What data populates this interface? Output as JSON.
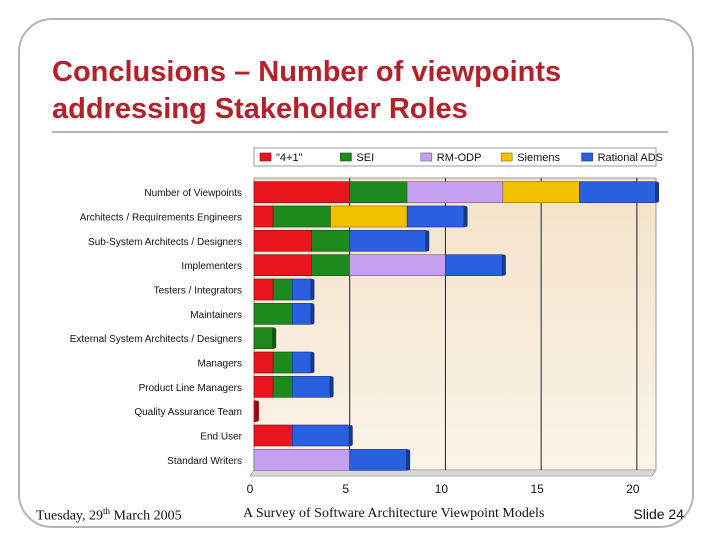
{
  "slide": {
    "title": "Conclusions – Number of viewpoints addressing Stakeholder Roles",
    "footer_date_prefix": "Tuesday, 29",
    "footer_date_sup": "th",
    "footer_date_suffix": " March 2005",
    "footer_center": "A Survey of Software Architecture Viewpoint Models",
    "footer_right": "Slide 24"
  },
  "chart_data": {
    "type": "bar",
    "orientation": "horizontal",
    "stacked": true,
    "categories": [
      "Number of Viewpoints",
      "Architects / Requirements Engineers",
      "Sub-System Architects / Designers",
      "Implementers",
      "Testers / Integrators",
      "Maintainers",
      "External System Architects / Designers",
      "Managers",
      "Product Line Managers",
      "Quality Assurance Team",
      "End User",
      "Standard Writers"
    ],
    "series": [
      {
        "name": "\"4+1\"",
        "color": "#e8141e",
        "values": [
          5,
          1,
          3,
          3,
          1,
          0,
          0,
          1,
          1,
          0.1,
          2,
          0
        ]
      },
      {
        "name": "SEI",
        "color": "#1d8a1d",
        "values": [
          3,
          3,
          2,
          2,
          1,
          2,
          1,
          1,
          1,
          0,
          0,
          0
        ]
      },
      {
        "name": "RM-ODP",
        "color": "#c79ff0",
        "values": [
          5,
          0,
          0,
          5,
          0,
          0,
          0,
          0,
          0,
          0,
          0,
          5
        ]
      },
      {
        "name": "Siemens",
        "color": "#f2c200",
        "values": [
          4,
          4,
          0,
          0,
          0,
          0,
          0,
          0,
          0,
          0,
          0,
          0
        ]
      },
      {
        "name": "Rational ADS",
        "color": "#2a5fe0",
        "values": [
          4,
          3,
          4,
          3,
          1,
          1,
          0,
          1,
          2,
          0,
          3,
          3
        ]
      }
    ],
    "xticks": [
      0,
      5,
      10,
      15,
      20
    ],
    "xlim": [
      0,
      21
    ],
    "legend_position": "top",
    "grid": true
  }
}
